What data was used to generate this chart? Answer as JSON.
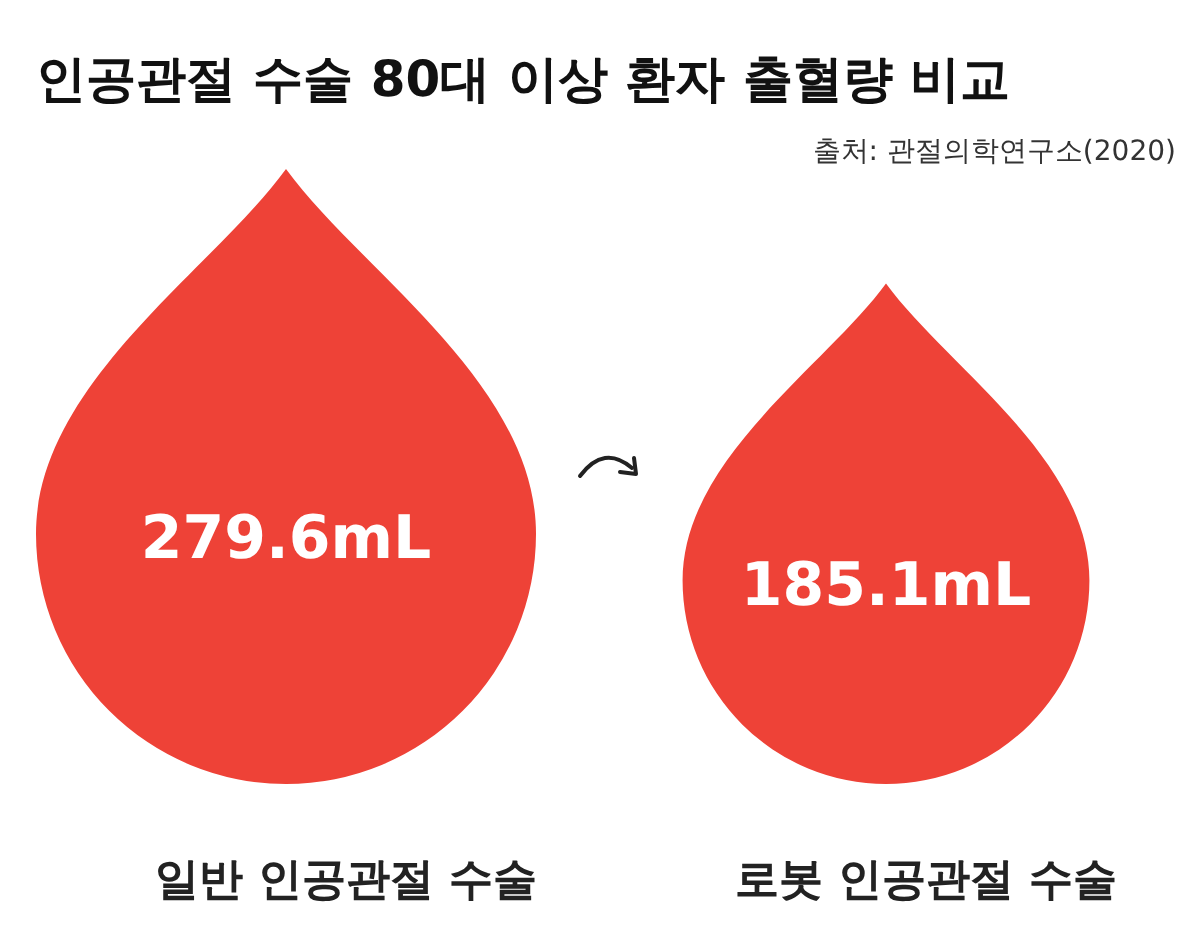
{
  "chart_data": {
    "type": "other",
    "title": "인공관절 수술 80대 이상 환자 출혈량 비교",
    "annotations": [
      "출처: 관절의학연구소(2020)"
    ],
    "categories": [
      "일반 인공관절 수술",
      "로봇 인공관절 수술"
    ],
    "values": [
      279.6,
      185.1
    ],
    "value_labels": [
      "279.6mL",
      "185.1mL"
    ],
    "color": "#ee4237"
  }
}
